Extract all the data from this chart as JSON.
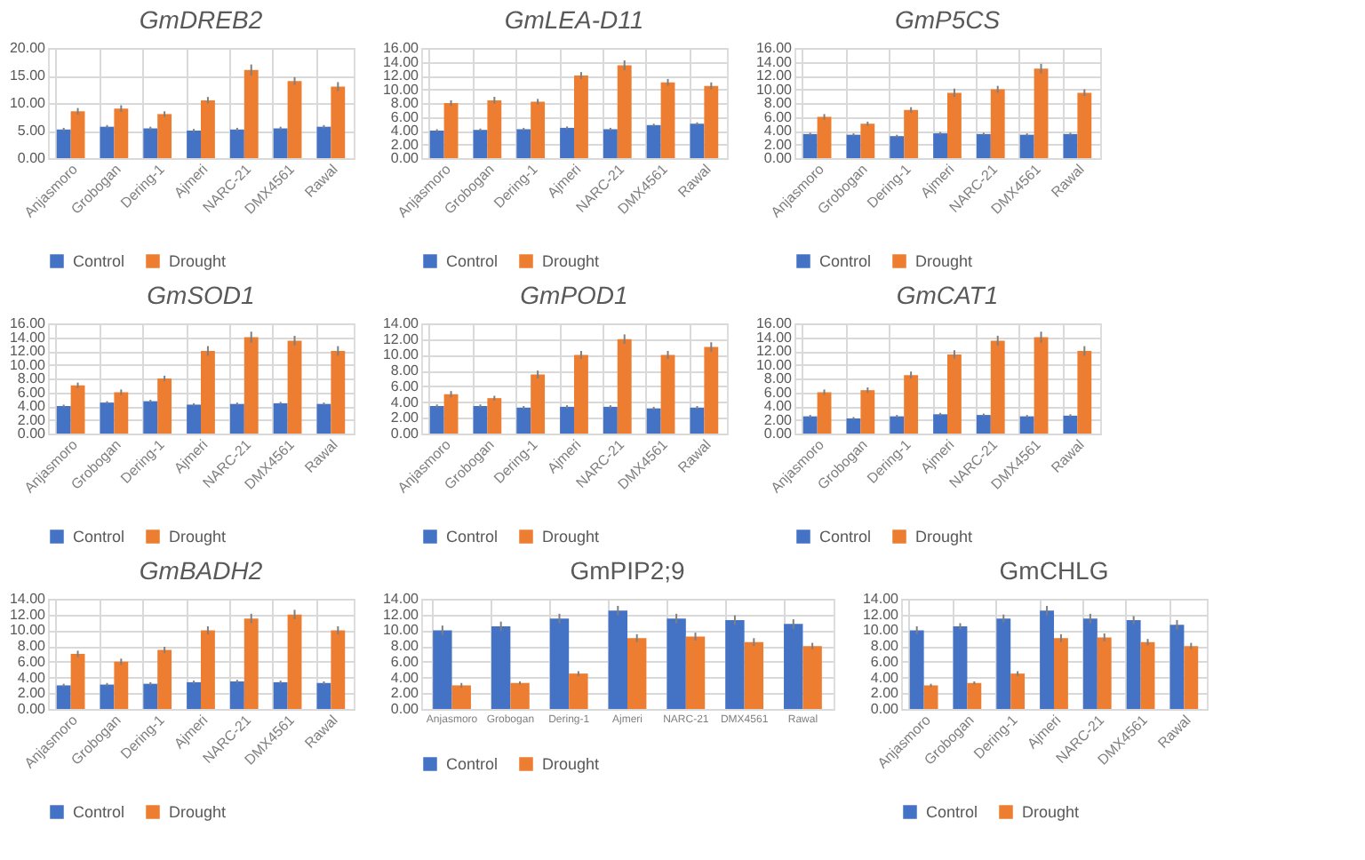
{
  "chart_data": [
    {
      "type": "bar",
      "title": "GmDREB2",
      "categories": [
        "Anjasmoro",
        "Grobogan",
        "Dering-1",
        "Ajmeri",
        "NARC-21",
        "DMX4561",
        "Rawal"
      ],
      "series": [
        {
          "name": "Control",
          "color": "#4472c4",
          "values": [
            5.2,
            5.7,
            5.4,
            5.0,
            5.2,
            5.4,
            5.7
          ],
          "errors": [
            0.3,
            0.3,
            0.3,
            0.3,
            0.3,
            0.3,
            0.3
          ]
        },
        {
          "name": "Drought",
          "color": "#ed7d31",
          "values": [
            8.5,
            9.0,
            8.0,
            10.5,
            16.0,
            14.0,
            13.0
          ],
          "errors": [
            0.6,
            0.6,
            0.5,
            0.6,
            1.0,
            0.7,
            0.8
          ]
        }
      ],
      "ylim": [
        0,
        20
      ],
      "yticks": [
        {
          "value": 0,
          "label": "0.00"
        },
        {
          "value": 5,
          "label": "5.00"
        },
        {
          "value": 10,
          "label": "10.00"
        },
        {
          "value": 15,
          "label": "15.00"
        },
        {
          "value": 20,
          "label": "20.00"
        }
      ],
      "grid": true,
      "legend": "bottom"
    },
    {
      "type": "bar",
      "title": "GmLEA-D11",
      "categories": [
        "Anjasmoro",
        "Grobogan",
        "Dering-1",
        "Ajmeri",
        "NARC-21",
        "DMX4561",
        "Rawal"
      ],
      "series": [
        {
          "name": "Control",
          "color": "#4472c4",
          "values": [
            4.0,
            4.1,
            4.2,
            4.4,
            4.2,
            4.8,
            5.0
          ],
          "errors": [
            0.2,
            0.2,
            0.2,
            0.2,
            0.2,
            0.2,
            0.2
          ]
        },
        {
          "name": "Drought",
          "color": "#ed7d31",
          "values": [
            8.0,
            8.4,
            8.2,
            12.0,
            13.5,
            11.0,
            10.5
          ],
          "errors": [
            0.4,
            0.5,
            0.4,
            0.5,
            0.7,
            0.5,
            0.5
          ]
        }
      ],
      "ylim": [
        0,
        16
      ],
      "yticks": [
        {
          "value": 0,
          "label": "0.00"
        },
        {
          "value": 2,
          "label": "2.00"
        },
        {
          "value": 4,
          "label": "4.00"
        },
        {
          "value": 6,
          "label": "6.00"
        },
        {
          "value": 8,
          "label": "8.00"
        },
        {
          "value": 10,
          "label": "10.00"
        },
        {
          "value": 12,
          "label": "12.00"
        },
        {
          "value": 14,
          "label": "14.00"
        },
        {
          "value": 16,
          "label": "16.00"
        }
      ],
      "grid": true,
      "legend": "bottom"
    },
    {
      "type": "bar",
      "title": "GmP5CS",
      "categories": [
        "Anjasmoro",
        "Grobogan",
        "Dering-1",
        "Ajmeri",
        "NARC-21",
        "DMX4561",
        "Rawal"
      ],
      "series": [
        {
          "name": "Control",
          "color": "#4472c4",
          "values": [
            3.5,
            3.4,
            3.2,
            3.6,
            3.5,
            3.4,
            3.5
          ],
          "errors": [
            0.2,
            0.2,
            0.2,
            0.2,
            0.2,
            0.2,
            0.2
          ]
        },
        {
          "name": "Drought",
          "color": "#ed7d31",
          "values": [
            6.0,
            5.0,
            7.0,
            9.5,
            10.0,
            13.0,
            9.5
          ],
          "errors": [
            0.4,
            0.3,
            0.4,
            0.6,
            0.5,
            0.7,
            0.5
          ]
        }
      ],
      "ylim": [
        0,
        16
      ],
      "yticks": [
        {
          "value": 0,
          "label": "0.00"
        },
        {
          "value": 2,
          "label": "2.00"
        },
        {
          "value": 4,
          "label": "4.00"
        },
        {
          "value": 6,
          "label": "6.00"
        },
        {
          "value": 8,
          "label": "8.00"
        },
        {
          "value": 10,
          "label": "10.00"
        },
        {
          "value": 12,
          "label": "12.00"
        },
        {
          "value": 14,
          "label": "14.00"
        },
        {
          "value": 16,
          "label": "16.00"
        }
      ],
      "grid": true,
      "legend": "bottom"
    },
    {
      "type": "bar",
      "title": "GmSOD1",
      "categories": [
        "Anjasmoro",
        "Grobogan",
        "Dering-1",
        "Ajmeri",
        "NARC-21",
        "DMX4561",
        "Rawal"
      ],
      "series": [
        {
          "name": "Control",
          "color": "#4472c4",
          "values": [
            4.0,
            4.5,
            4.7,
            4.2,
            4.3,
            4.4,
            4.3
          ],
          "errors": [
            0.2,
            0.2,
            0.2,
            0.2,
            0.2,
            0.2,
            0.2
          ]
        },
        {
          "name": "Drought",
          "color": "#ed7d31",
          "values": [
            7.0,
            6.0,
            8.0,
            12.0,
            14.0,
            13.5,
            12.0
          ],
          "errors": [
            0.4,
            0.4,
            0.4,
            0.7,
            0.8,
            0.7,
            0.7
          ]
        }
      ],
      "ylim": [
        0,
        16
      ],
      "yticks": [
        {
          "value": 0,
          "label": "0.00"
        },
        {
          "value": 2,
          "label": "2.00"
        },
        {
          "value": 4,
          "label": "4.00"
        },
        {
          "value": 6,
          "label": "6.00"
        },
        {
          "value": 8,
          "label": "8.00"
        },
        {
          "value": 10,
          "label": "10.00"
        },
        {
          "value": 12,
          "label": "12.00"
        },
        {
          "value": 14,
          "label": "14.00"
        },
        {
          "value": 16,
          "label": "16.00"
        }
      ],
      "grid": true,
      "legend": "bottom"
    },
    {
      "type": "bar",
      "title": "GmPOD1",
      "categories": [
        "Anjasmoro",
        "Grobogan",
        "Dering-1",
        "Ajmeri",
        "NARC-21",
        "DMX4561",
        "Rawal"
      ],
      "series": [
        {
          "name": "Control",
          "color": "#4472c4",
          "values": [
            3.5,
            3.5,
            3.3,
            3.4,
            3.4,
            3.2,
            3.3
          ],
          "errors": [
            0.2,
            0.2,
            0.2,
            0.2,
            0.2,
            0.2,
            0.2
          ]
        },
        {
          "name": "Drought",
          "color": "#ed7d31",
          "values": [
            5.0,
            4.5,
            7.5,
            10.0,
            12.0,
            10.0,
            11.0
          ],
          "errors": [
            0.4,
            0.3,
            0.5,
            0.5,
            0.6,
            0.5,
            0.6
          ]
        }
      ],
      "ylim": [
        0,
        14
      ],
      "yticks": [
        {
          "value": 0,
          "label": "0.00"
        },
        {
          "value": 2,
          "label": "2.00"
        },
        {
          "value": 4,
          "label": "4.00"
        },
        {
          "value": 6,
          "label": "6.00"
        },
        {
          "value": 8,
          "label": "8.00"
        },
        {
          "value": 10,
          "label": "10.00"
        },
        {
          "value": 12,
          "label": "12.00"
        },
        {
          "value": 14,
          "label": "14.00"
        }
      ],
      "grid": true,
      "legend": "bottom"
    },
    {
      "type": "bar",
      "title": "GmCAT1",
      "categories": [
        "Anjasmoro",
        "Grobogan",
        "Dering-1",
        "Ajmeri",
        "NARC-21",
        "DMX4561",
        "Rawal"
      ],
      "series": [
        {
          "name": "Control",
          "color": "#4472c4",
          "values": [
            2.5,
            2.2,
            2.5,
            2.8,
            2.7,
            2.5,
            2.6
          ],
          "errors": [
            0.2,
            0.2,
            0.2,
            0.2,
            0.2,
            0.2,
            0.2
          ]
        },
        {
          "name": "Drought",
          "color": "#ed7d31",
          "values": [
            6.0,
            6.3,
            8.5,
            11.5,
            13.5,
            14.0,
            12.0
          ],
          "errors": [
            0.4,
            0.4,
            0.5,
            0.6,
            0.7,
            0.8,
            0.7
          ]
        }
      ],
      "ylim": [
        0,
        16
      ],
      "yticks": [
        {
          "value": 0,
          "label": "0.00"
        },
        {
          "value": 2,
          "label": "2.00"
        },
        {
          "value": 4,
          "label": "4.00"
        },
        {
          "value": 6,
          "label": "6.00"
        },
        {
          "value": 8,
          "label": "8.00"
        },
        {
          "value": 10,
          "label": "10.00"
        },
        {
          "value": 12,
          "label": "12.00"
        },
        {
          "value": 14,
          "label": "14.00"
        },
        {
          "value": 16,
          "label": "16.00"
        }
      ],
      "grid": true,
      "legend": "bottom"
    },
    {
      "type": "bar",
      "title": "GmBADH2",
      "categories": [
        "Anjasmoro",
        "Grobogan",
        "Dering-1",
        "Ajmeri",
        "NARC-21",
        "DMX4561",
        "Rawal"
      ],
      "series": [
        {
          "name": "Control",
          "color": "#4472c4",
          "values": [
            3.0,
            3.1,
            3.2,
            3.4,
            3.5,
            3.4,
            3.3
          ],
          "errors": [
            0.2,
            0.2,
            0.2,
            0.2,
            0.2,
            0.2,
            0.2
          ]
        },
        {
          "name": "Drought",
          "color": "#ed7d31",
          "values": [
            7.0,
            6.0,
            7.5,
            10.0,
            11.5,
            12.0,
            10.0
          ],
          "errors": [
            0.4,
            0.4,
            0.4,
            0.5,
            0.6,
            0.6,
            0.5
          ]
        }
      ],
      "ylim": [
        0,
        14
      ],
      "yticks": [
        {
          "value": 0,
          "label": "0.00"
        },
        {
          "value": 2,
          "label": "2.00"
        },
        {
          "value": 4,
          "label": "4.00"
        },
        {
          "value": 6,
          "label": "6.00"
        },
        {
          "value": 8,
          "label": "8.00"
        },
        {
          "value": 10,
          "label": "10.00"
        },
        {
          "value": 12,
          "label": "12.00"
        },
        {
          "value": 14,
          "label": "14.00"
        }
      ],
      "grid": true,
      "legend": "bottom"
    },
    {
      "type": "bar",
      "title": "GmPIP2;9",
      "categories": [
        "Anjasmoro",
        "Grobogan",
        "Dering-1",
        "Ajmeri",
        "NARC-21",
        "DMX4561",
        "Rawal"
      ],
      "series": [
        {
          "name": "Control",
          "color": "#4472c4",
          "values": [
            10.0,
            10.5,
            11.5,
            12.5,
            11.5,
            11.3,
            10.8
          ],
          "errors": [
            0.6,
            0.6,
            0.6,
            0.6,
            0.6,
            0.6,
            0.6
          ]
        },
        {
          "name": "Drought",
          "color": "#ed7d31",
          "values": [
            3.0,
            3.3,
            4.5,
            9.0,
            9.2,
            8.5,
            8.0
          ],
          "errors": [
            0.3,
            0.2,
            0.3,
            0.5,
            0.5,
            0.5,
            0.4
          ]
        }
      ],
      "ylim": [
        0,
        14
      ],
      "yticks": [
        {
          "value": 0,
          "label": "0.00"
        },
        {
          "value": 2,
          "label": "2.00"
        },
        {
          "value": 4,
          "label": "4.00"
        },
        {
          "value": 6,
          "label": "6.00"
        },
        {
          "value": 8,
          "label": "8.00"
        },
        {
          "value": 10,
          "label": "10.00"
        },
        {
          "value": 12,
          "label": "12.00"
        },
        {
          "value": 14,
          "label": "14.00"
        }
      ],
      "grid": true,
      "legend": "bottom"
    },
    {
      "type": "bar",
      "title": "GmCHLG",
      "categories": [
        "Anjasmoro",
        "Grobogan",
        "Dering-1",
        "Ajmeri",
        "NARC-21",
        "DMX4561",
        "Rawal"
      ],
      "series": [
        {
          "name": "Control",
          "color": "#4472c4",
          "values": [
            10.0,
            10.5,
            11.5,
            12.5,
            11.5,
            11.3,
            10.7
          ],
          "errors": [
            0.5,
            0.4,
            0.5,
            0.6,
            0.6,
            0.5,
            0.6
          ]
        },
        {
          "name": "Drought",
          "color": "#ed7d31",
          "values": [
            3.0,
            3.3,
            4.5,
            9.0,
            9.1,
            8.5,
            8.0
          ],
          "errors": [
            0.2,
            0.2,
            0.3,
            0.5,
            0.5,
            0.4,
            0.4
          ]
        }
      ],
      "ylim": [
        0,
        14
      ],
      "yticks": [
        {
          "value": 0,
          "label": "0.00"
        },
        {
          "value": 2,
          "label": "2.00"
        },
        {
          "value": 4,
          "label": "4.00"
        },
        {
          "value": 6,
          "label": "6.00"
        },
        {
          "value": 8,
          "label": "8.00"
        },
        {
          "value": 10,
          "label": "10.00"
        },
        {
          "value": 12,
          "label": "12.00"
        },
        {
          "value": 14,
          "label": "14.00"
        }
      ],
      "grid": true,
      "legend": "bottom"
    }
  ]
}
